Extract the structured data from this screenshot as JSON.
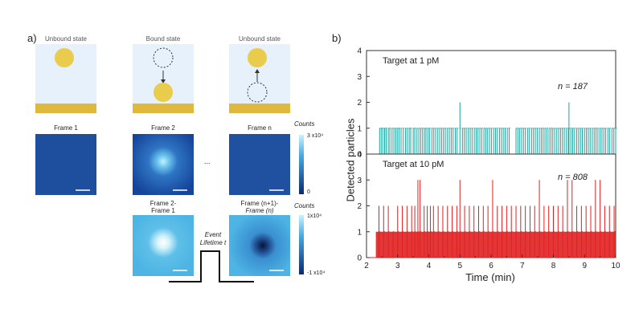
{
  "panel_a": {
    "label": "a)",
    "states": [
      "Unbound state",
      "Bound state",
      "Unbound state"
    ],
    "frames": [
      "Frame 1",
      "Frame 2",
      "Frame n"
    ],
    "ellipsis": "...",
    "diff_frames": [
      [
        "Frame 2-",
        "Frame 1"
      ],
      [
        "Frame (n+1)-",
        "Frame (n)"
      ]
    ],
    "colorbar_top": {
      "title": "Counts",
      "max": "3 x10⁴",
      "min": "0"
    },
    "colorbar_bottom": {
      "title": "Counts",
      "max": "1x10⁴",
      "min": "-1 x10⁴"
    },
    "event": [
      "Event",
      "Lifetime t"
    ],
    "colors": {
      "background": "#e6f1fb",
      "particle": "#e9cc4c",
      "gold": "#e0b93c"
    }
  },
  "panel_b": {
    "label": "b)",
    "ylabel": "Detected particles",
    "xlabel": "Time (min)"
  },
  "chart_data": {
    "type": "bar",
    "x_range": [
      2,
      10
    ],
    "xticks": [
      2,
      3,
      4,
      5,
      6,
      7,
      8,
      9,
      10
    ],
    "yticks": [
      0,
      1,
      2,
      3,
      4
    ],
    "ylim": [
      0,
      4
    ],
    "series": [
      {
        "name": "Target at 1 pM",
        "n_label": "n = 187",
        "color": "#1aa6a0",
        "times": [
          2.42,
          2.47,
          2.52,
          2.58,
          2.63,
          2.7,
          2.75,
          2.82,
          2.88,
          2.94,
          3.0,
          3.05,
          3.11,
          3.18,
          3.25,
          3.31,
          3.37,
          3.42,
          3.5,
          3.55,
          3.62,
          3.68,
          3.74,
          3.8,
          3.86,
          3.91,
          3.97,
          4.03,
          4.1,
          4.16,
          4.22,
          4.29,
          4.35,
          4.41,
          4.47,
          4.53,
          4.6,
          4.66,
          4.72,
          4.78,
          4.85,
          4.91,
          5.0,
          5.08,
          5.14,
          5.2,
          5.27,
          5.33,
          5.39,
          5.46,
          5.52,
          5.58,
          5.64,
          5.7,
          5.77,
          5.83,
          5.89,
          5.95,
          6.01,
          6.08,
          6.14,
          6.2,
          6.27,
          6.33,
          6.39,
          6.45,
          6.52,
          6.58,
          6.8,
          6.86,
          6.92,
          6.98,
          7.04,
          7.1,
          7.17,
          7.23,
          7.3,
          7.36,
          7.42,
          7.48,
          7.55,
          7.61,
          7.67,
          7.73,
          7.79,
          7.86,
          7.92,
          7.98,
          8.04,
          8.11,
          8.17,
          8.23,
          8.29,
          8.35,
          8.42,
          8.48,
          8.5,
          8.56,
          8.62,
          8.68,
          8.75,
          8.81,
          8.87,
          8.93,
          9.0,
          9.06,
          9.12,
          9.18,
          9.25,
          9.31,
          9.37,
          9.43,
          9.5,
          9.56,
          9.62,
          9.68,
          9.75,
          9.81,
          9.88,
          9.94,
          10.0
        ],
        "values": [
          1,
          1,
          1,
          1,
          1,
          1,
          1,
          1,
          1,
          1,
          1,
          1,
          1,
          1,
          1,
          1,
          1,
          1,
          1,
          1,
          1,
          1,
          1,
          1,
          1,
          1,
          1,
          1,
          1,
          1,
          1,
          1,
          1,
          1,
          1,
          1,
          1,
          1,
          1,
          1,
          1,
          1,
          2,
          1,
          1,
          1,
          1,
          1,
          1,
          1,
          1,
          1,
          1,
          1,
          1,
          1,
          1,
          1,
          1,
          1,
          1,
          1,
          1,
          1,
          1,
          1,
          1,
          1,
          1,
          1,
          1,
          1,
          1,
          1,
          1,
          1,
          1,
          1,
          1,
          1,
          1,
          1,
          1,
          1,
          1,
          1,
          1,
          1,
          1,
          1,
          1,
          1,
          1,
          1,
          1,
          1,
          2,
          1,
          1,
          1,
          1,
          1,
          1,
          1,
          1,
          1,
          1,
          1,
          1,
          1,
          1,
          1,
          1,
          1,
          1,
          1,
          1,
          1,
          1,
          1,
          1
        ]
      },
      {
        "name": "Target at 10 pM",
        "n_label": "n = 808",
        "color": "#e02020",
        "times": [
          2.4,
          2.55,
          2.7,
          2.85,
          3.0,
          3.15,
          3.3,
          3.45,
          3.55,
          3.65,
          3.72,
          3.85,
          3.95,
          4.05,
          4.15,
          4.3,
          4.45,
          4.6,
          4.75,
          4.9,
          5.0,
          5.15,
          5.3,
          5.45,
          5.6,
          5.75,
          5.9,
          6.05,
          6.2,
          6.35,
          6.5,
          6.65,
          6.8,
          6.95,
          7.1,
          7.25,
          7.4,
          7.55,
          7.7,
          7.85,
          8.0,
          8.15,
          8.3,
          8.45,
          8.6,
          8.75,
          8.9,
          9.05,
          9.2,
          9.35,
          9.5,
          9.65,
          9.8,
          9.95
        ],
        "values": [
          2,
          2,
          2,
          1,
          2,
          2,
          2,
          2,
          2,
          3,
          3,
          2,
          2,
          2,
          2,
          2,
          2,
          2,
          2,
          2,
          3,
          2,
          2,
          2,
          2,
          2,
          2,
          3,
          2,
          2,
          2,
          2,
          2,
          2,
          2,
          2,
          2,
          3,
          2,
          2,
          2,
          2,
          2,
          3,
          3,
          2,
          2,
          2,
          2,
          3,
          3,
          2,
          2,
          2
        ]
      }
    ]
  }
}
